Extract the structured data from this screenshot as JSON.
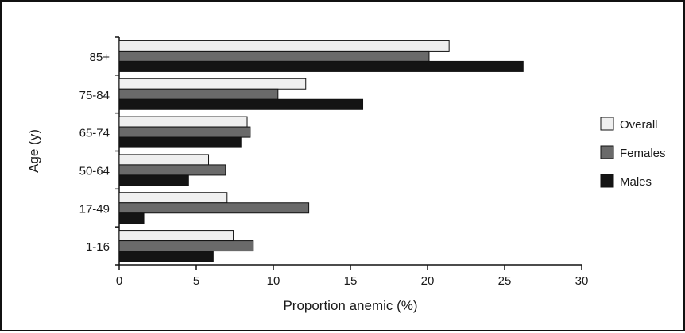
{
  "chart_data": {
    "type": "bar",
    "orientation": "horizontal",
    "categories": [
      "85+",
      "75-84",
      "65-74",
      "50-64",
      "17-49",
      "1-16"
    ],
    "series": [
      {
        "name": "Overall",
        "values": [
          21.4,
          12.1,
          8.3,
          5.8,
          7.0,
          7.4
        ],
        "color": "#efefef"
      },
      {
        "name": "Females",
        "values": [
          20.1,
          10.3,
          8.5,
          6.9,
          12.3,
          8.7
        ],
        "color": "#6a6a6a"
      },
      {
        "name": "Males",
        "values": [
          26.2,
          15.8,
          7.9,
          4.5,
          1.6,
          6.1
        ],
        "color": "#141414"
      }
    ],
    "xlabel": "Proportion anemic (%)",
    "ylabel": "Age (y)",
    "xlim": [
      0,
      30
    ],
    "xticks": [
      0,
      5,
      10,
      15,
      20,
      25,
      30
    ],
    "grid": false,
    "legend_position": "right"
  }
}
